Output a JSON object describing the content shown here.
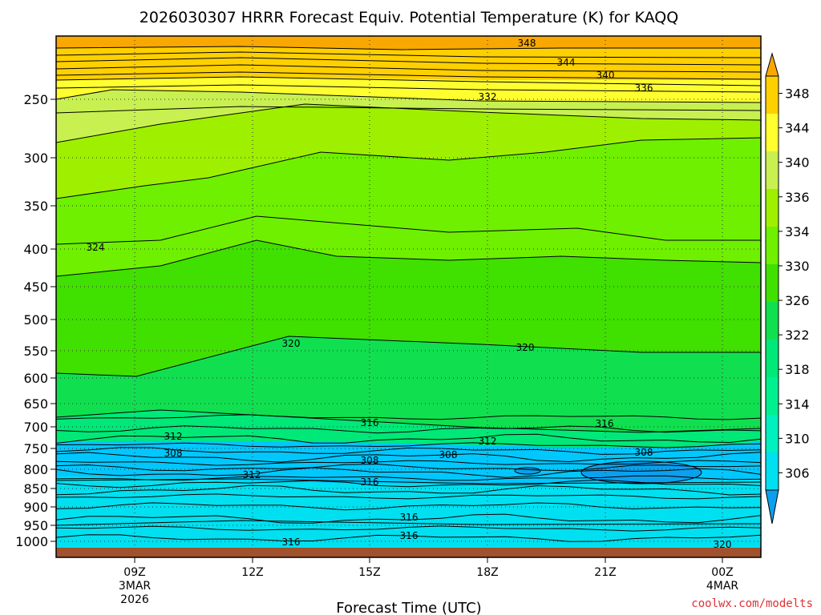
{
  "title": "2026030307 HRRR Forecast Equiv. Potential Temperature (K) for KAQQ",
  "credit": "coolwx.com/modelts",
  "colors": {
    "ground": "#a0522d",
    "contour": "#000000",
    "band_colors": [
      "#0ba0ee",
      "#00c8ff",
      "#00e0f0",
      "#00f0c0",
      "#00f090",
      "#00e878",
      "#10e050",
      "#40e000",
      "#6ef000",
      "#9ef000",
      "#c8f050",
      "#ffff30",
      "#ffd000",
      "#f8a800"
    ]
  },
  "chart_data": {
    "type": "heatmap",
    "title": "2026030307 HRRR Forecast Equiv. Potential Temperature (K) for KAQQ",
    "xlabel": "Forecast Time (UTC)",
    "ylabel": "",
    "y_axis": "pressure (hPa), reversed",
    "y_ticks": [
      "250",
      "300",
      "350",
      "400",
      "450",
      "500",
      "550",
      "600",
      "650",
      "700",
      "750",
      "800",
      "850",
      "900",
      "950",
      "1000"
    ],
    "x_ticks": [
      {
        "label": "09Z",
        "sub": [
          "3MAR",
          "2026"
        ]
      },
      {
        "label": "12Z",
        "sub": []
      },
      {
        "label": "15Z",
        "sub": []
      },
      {
        "label": "18Z",
        "sub": []
      },
      {
        "label": "21Z",
        "sub": []
      },
      {
        "label": "00Z",
        "sub": [
          "4MAR"
        ]
      }
    ],
    "colorbar": {
      "ticks": [
        "348",
        "344",
        "340",
        "336",
        "334",
        "330",
        "326",
        "322",
        "318",
        "314",
        "310",
        "306"
      ],
      "extend": "both"
    },
    "contour_levels": [
      "348",
      "344",
      "340",
      "336",
      "332",
      "324",
      "320",
      "316",
      "312",
      "308"
    ],
    "contour_labels": [
      {
        "text": "348"
      },
      {
        "text": "344"
      },
      {
        "text": "340"
      },
      {
        "text": "336"
      },
      {
        "text": "332"
      },
      {
        "text": "324"
      },
      {
        "text": "320"
      },
      {
        "text": "320"
      },
      {
        "text": "316"
      },
      {
        "text": "316"
      },
      {
        "text": "312"
      },
      {
        "text": "312"
      },
      {
        "text": "308"
      },
      {
        "text": "308"
      },
      {
        "text": "308"
      },
      {
        "text": "308"
      },
      {
        "text": "312"
      },
      {
        "text": "316"
      },
      {
        "text": "316"
      },
      {
        "text": "316"
      },
      {
        "text": "316"
      },
      {
        "text": "320"
      }
    ]
  }
}
